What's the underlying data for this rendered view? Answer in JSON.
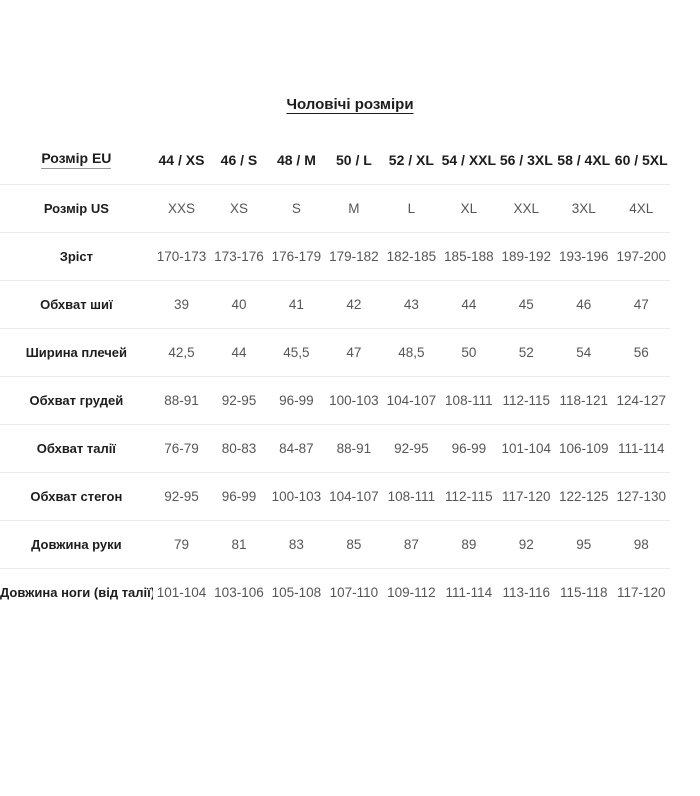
{
  "page": {
    "title": "Чоловічі розміри"
  },
  "colors": {
    "text_dark": "#1d1d1d",
    "text_gray": "#565656",
    "divider": "#ebebeb",
    "link_underline": "#9a9a9a",
    "background": "#ffffff"
  },
  "table": {
    "header": {
      "label": "Розмір EU",
      "sizes": [
        "44 / XS",
        "46 / S",
        "48 / M",
        "50 / L",
        "52 / XL",
        "54 / XXL",
        "56 / 3XL",
        "58 / 4XL",
        "60 / 5XL"
      ]
    },
    "rows": [
      {
        "label": "Розмір US",
        "values": [
          "XXS",
          "XS",
          "S",
          "M",
          "L",
          "XL",
          "XXL",
          "3XL",
          "4XL"
        ]
      },
      {
        "label": "Зріст",
        "values": [
          "170-173",
          "173-176",
          "176-179",
          "179-182",
          "182-185",
          "185-188",
          "189-192",
          "193-196",
          "197-200"
        ]
      },
      {
        "label": "Обхват шиї",
        "values": [
          "39",
          "40",
          "41",
          "42",
          "43",
          "44",
          "45",
          "46",
          "47"
        ]
      },
      {
        "label": "Ширина плечей",
        "values": [
          "42,5",
          "44",
          "45,5",
          "47",
          "48,5",
          "50",
          "52",
          "54",
          "56"
        ]
      },
      {
        "label": "Обхват грудей",
        "values": [
          "88-91",
          "92-95",
          "96-99",
          "100-103",
          "104-107",
          "108-111",
          "112-115",
          "118-121",
          "124-127"
        ]
      },
      {
        "label": "Обхват талії",
        "values": [
          "76-79",
          "80-83",
          "84-87",
          "88-91",
          "92-95",
          "96-99",
          "101-104",
          "106-109",
          "111-114"
        ]
      },
      {
        "label": "Обхват стегон",
        "values": [
          "92-95",
          "96-99",
          "100-103",
          "104-107",
          "108-111",
          "112-115",
          "117-120",
          "122-125",
          "127-130"
        ]
      },
      {
        "label": "Довжина руки",
        "values": [
          "79",
          "81",
          "83",
          "85",
          "87",
          "89",
          "92",
          "95",
          "98"
        ]
      },
      {
        "label": "Довжина ноги (від талії)",
        "values": [
          "101-104",
          "103-106",
          "105-108",
          "107-110",
          "109-112",
          "111-114",
          "113-116",
          "115-118",
          "117-120"
        ]
      }
    ]
  }
}
